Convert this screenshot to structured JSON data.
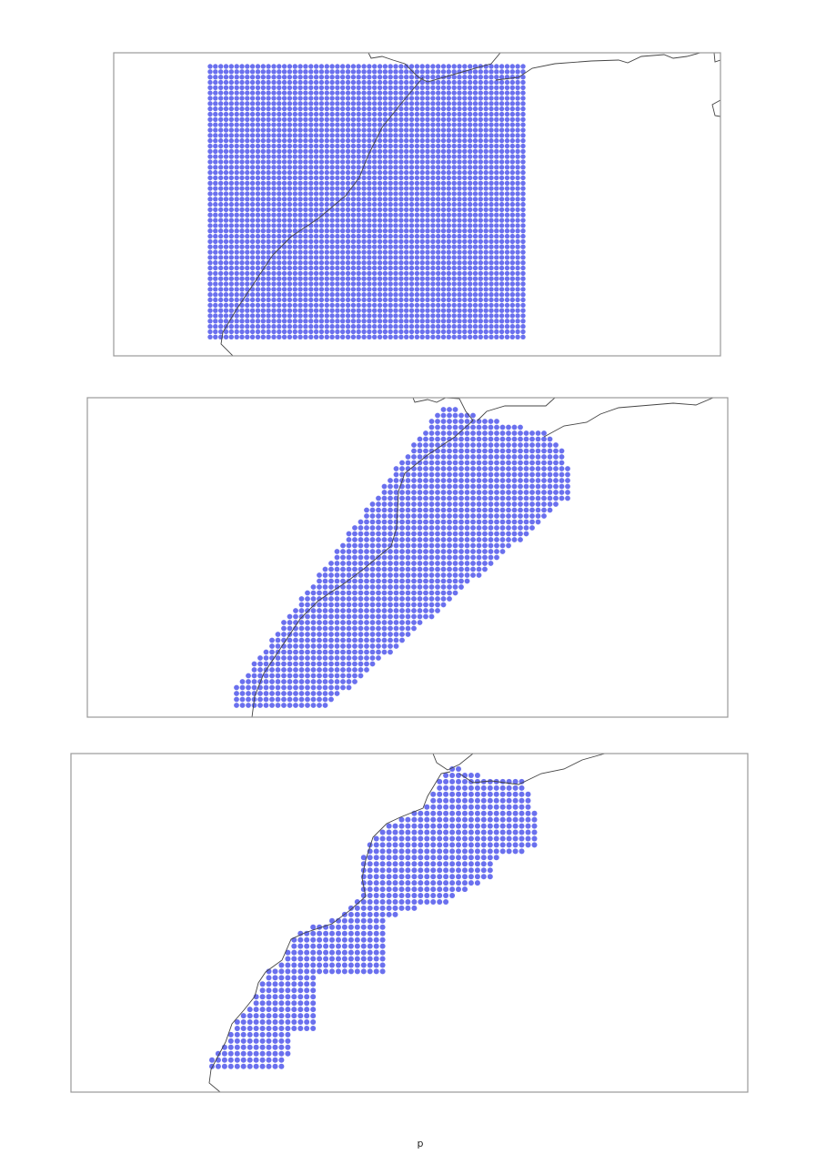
{
  "caption": "p"
}
